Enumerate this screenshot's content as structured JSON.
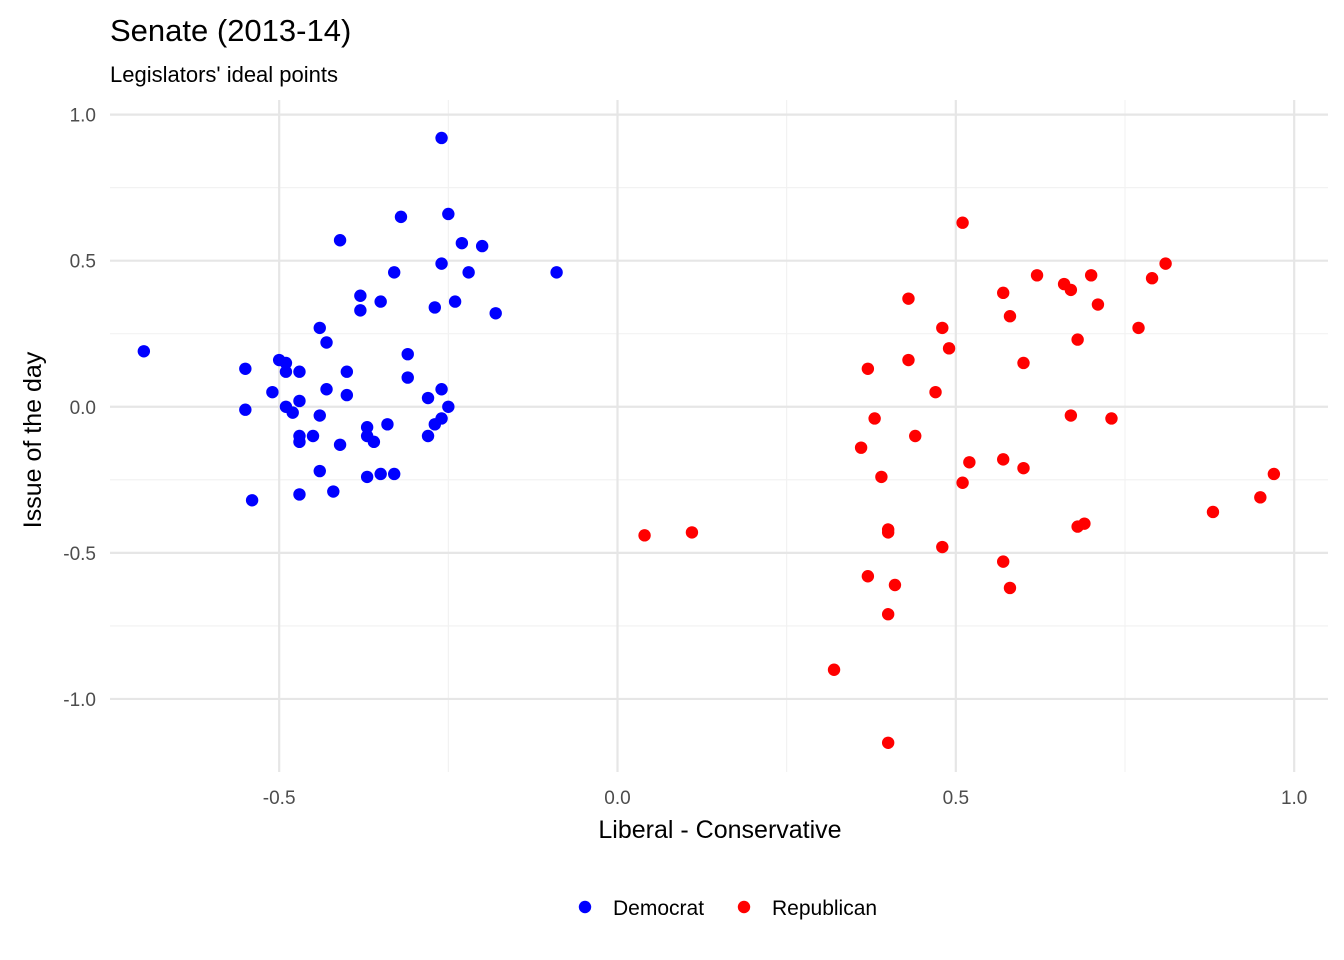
{
  "chart_data": {
    "type": "scatter",
    "title": "Senate (2013-14)",
    "subtitle": "Legislators' ideal points",
    "xlabel": "Liberal - Conservative",
    "ylabel": "Issue of the day",
    "xlim": [
      -0.75,
      1.05
    ],
    "ylim": [
      -1.25,
      1.05
    ],
    "x_ticks": [
      -0.5,
      0.0,
      0.5,
      1.0
    ],
    "x_tick_labels": [
      "-0.5",
      "0.0",
      "0.5",
      "1.0"
    ],
    "y_ticks": [
      -1.0,
      -0.5,
      0.0,
      0.5,
      1.0
    ],
    "y_tick_labels": [
      "-1.0",
      "-0.5",
      "0.0",
      "0.5",
      "1.0"
    ],
    "grid": true,
    "legend_position": "bottom",
    "series": [
      {
        "name": "Democrat",
        "color": "#0000ff",
        "points": [
          [
            -0.26,
            0.92
          ],
          [
            -0.25,
            0.66
          ],
          [
            -0.32,
            0.65
          ],
          [
            -0.41,
            0.57
          ],
          [
            -0.23,
            0.56
          ],
          [
            -0.2,
            0.55
          ],
          [
            -0.26,
            0.49
          ],
          [
            -0.33,
            0.46
          ],
          [
            -0.22,
            0.46
          ],
          [
            -0.09,
            0.46
          ],
          [
            -0.38,
            0.38
          ],
          [
            -0.35,
            0.36
          ],
          [
            -0.24,
            0.36
          ],
          [
            -0.27,
            0.34
          ],
          [
            -0.38,
            0.33
          ],
          [
            -0.18,
            0.32
          ],
          [
            -0.44,
            0.27
          ],
          [
            -0.43,
            0.22
          ],
          [
            -0.7,
            0.19
          ],
          [
            -0.31,
            0.18
          ],
          [
            -0.5,
            0.16
          ],
          [
            -0.49,
            0.15
          ],
          [
            -0.55,
            0.13
          ],
          [
            -0.47,
            0.12
          ],
          [
            -0.4,
            0.12
          ],
          [
            -0.49,
            0.12
          ],
          [
            -0.31,
            0.1
          ],
          [
            -0.51,
            0.05
          ],
          [
            -0.43,
            0.06
          ],
          [
            -0.26,
            0.06
          ],
          [
            -0.4,
            0.04
          ],
          [
            -0.28,
            0.03
          ],
          [
            -0.47,
            0.02
          ],
          [
            -0.49,
            0.0
          ],
          [
            -0.55,
            -0.01
          ],
          [
            -0.48,
            -0.02
          ],
          [
            -0.25,
            0.0
          ],
          [
            -0.44,
            -0.03
          ],
          [
            -0.26,
            -0.04
          ],
          [
            -0.27,
            -0.06
          ],
          [
            -0.34,
            -0.06
          ],
          [
            -0.37,
            -0.07
          ],
          [
            -0.47,
            -0.1
          ],
          [
            -0.45,
            -0.1
          ],
          [
            -0.37,
            -0.1
          ],
          [
            -0.28,
            -0.1
          ],
          [
            -0.47,
            -0.12
          ],
          [
            -0.36,
            -0.12
          ],
          [
            -0.41,
            -0.13
          ],
          [
            -0.44,
            -0.22
          ],
          [
            -0.35,
            -0.23
          ],
          [
            -0.33,
            -0.23
          ],
          [
            -0.37,
            -0.24
          ],
          [
            -0.42,
            -0.29
          ],
          [
            -0.47,
            -0.3
          ],
          [
            -0.54,
            -0.32
          ]
        ]
      },
      {
        "name": "Republican",
        "color": "#ff0000",
        "points": [
          [
            0.51,
            0.63
          ],
          [
            0.81,
            0.49
          ],
          [
            0.62,
            0.45
          ],
          [
            0.7,
            0.45
          ],
          [
            0.79,
            0.44
          ],
          [
            0.66,
            0.42
          ],
          [
            0.67,
            0.4
          ],
          [
            0.57,
            0.39
          ],
          [
            0.43,
            0.37
          ],
          [
            0.71,
            0.35
          ],
          [
            0.58,
            0.31
          ],
          [
            0.48,
            0.27
          ],
          [
            0.77,
            0.27
          ],
          [
            0.68,
            0.23
          ],
          [
            0.49,
            0.2
          ],
          [
            0.43,
            0.16
          ],
          [
            0.6,
            0.15
          ],
          [
            0.37,
            0.13
          ],
          [
            0.47,
            0.05
          ],
          [
            0.67,
            -0.03
          ],
          [
            0.38,
            -0.04
          ],
          [
            0.73,
            -0.04
          ],
          [
            0.44,
            -0.1
          ],
          [
            0.36,
            -0.14
          ],
          [
            0.57,
            -0.18
          ],
          [
            0.52,
            -0.19
          ],
          [
            0.6,
            -0.21
          ],
          [
            0.39,
            -0.24
          ],
          [
            0.97,
            -0.23
          ],
          [
            0.51,
            -0.26
          ],
          [
            0.95,
            -0.31
          ],
          [
            0.88,
            -0.36
          ],
          [
            0.69,
            -0.4
          ],
          [
            0.68,
            -0.41
          ],
          [
            0.4,
            -0.42
          ],
          [
            0.4,
            -0.43
          ],
          [
            0.04,
            -0.44
          ],
          [
            0.11,
            -0.43
          ],
          [
            0.48,
            -0.48
          ],
          [
            0.57,
            -0.53
          ],
          [
            0.37,
            -0.58
          ],
          [
            0.41,
            -0.61
          ],
          [
            0.58,
            -0.62
          ],
          [
            0.4,
            -0.71
          ],
          [
            0.32,
            -0.9
          ],
          [
            0.4,
            -1.15
          ]
        ]
      }
    ]
  }
}
